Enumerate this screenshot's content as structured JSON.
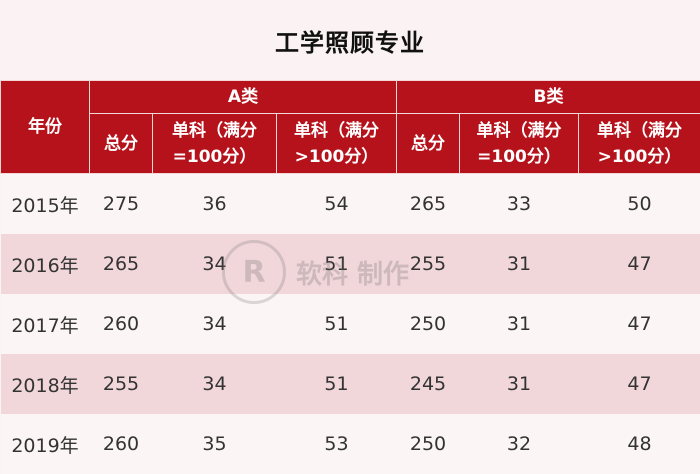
{
  "title": "工学照顾专业",
  "header": {
    "year": "年份",
    "group_a": "A类",
    "group_b": "B类",
    "total": "总分",
    "single_eq": "单科（满分=100分）",
    "single_gt": "单科（满分>100分）"
  },
  "rows": [
    {
      "year": "2015年",
      "a_total": "275",
      "a_eq": "36",
      "a_gt": "54",
      "b_total": "265",
      "b_eq": "33",
      "b_gt": "50"
    },
    {
      "year": "2016年",
      "a_total": "265",
      "a_eq": "34",
      "a_gt": "51",
      "b_total": "255",
      "b_eq": "31",
      "b_gt": "47"
    },
    {
      "year": "2017年",
      "a_total": "260",
      "a_eq": "34",
      "a_gt": "51",
      "b_total": "250",
      "b_eq": "31",
      "b_gt": "47"
    },
    {
      "year": "2018年",
      "a_total": "255",
      "a_eq": "34",
      "a_gt": "51",
      "b_total": "245",
      "b_eq": "31",
      "b_gt": "47"
    },
    {
      "year": "2019年",
      "a_total": "260",
      "a_eq": "35",
      "a_gt": "53",
      "b_total": "250",
      "b_eq": "32",
      "b_gt": "48"
    }
  ],
  "watermark": "软科 制作",
  "colors": {
    "header_red": "#b5121b",
    "row_pink": "#f1d6da",
    "row_light": "#fbf5f5"
  }
}
